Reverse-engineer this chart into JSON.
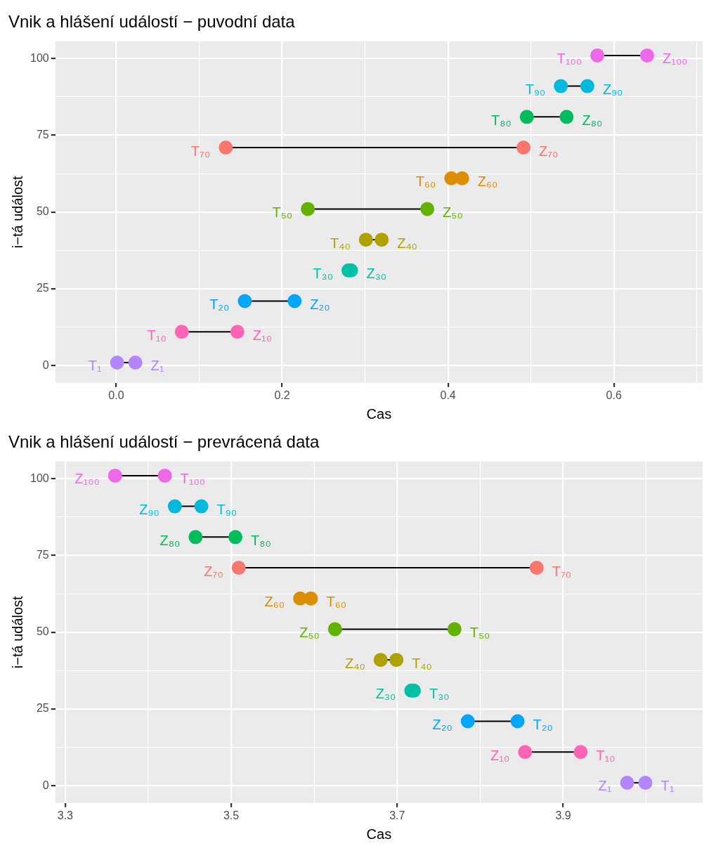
{
  "chart_data": [
    {
      "type": "line",
      "title": "Vnik a hlášení událostí − puvodní data",
      "xlabel": "Cas",
      "ylabel": "i−tá událost",
      "legend": false,
      "grid": true,
      "marker": "circle",
      "line_style": "solid",
      "xlim": [
        -0.0735,
        0.707
      ],
      "ylim": [
        -5.6,
        105.6
      ],
      "xticks": [
        {
          "value": 0,
          "label": "0.0"
        },
        {
          "value": 0.1,
          "label": null
        },
        {
          "value": 0.2,
          "label": "0.2"
        },
        {
          "value": 0.3,
          "label": null
        },
        {
          "value": 0.4,
          "label": "0.4"
        },
        {
          "value": 0.5,
          "label": null
        },
        {
          "value": 0.6,
          "label": "0.6"
        },
        {
          "value": 0.7,
          "label": null
        }
      ],
      "yticks": [
        0,
        {
          "value": 12.5,
          "label": null
        },
        25,
        {
          "value": 37.5,
          "label": null
        },
        50,
        {
          "value": 62.5,
          "label": null
        },
        75,
        {
          "value": 87.5,
          "label": null
        },
        100
      ],
      "series": [
        {
          "color": "#b385ff",
          "x": [
            0.001,
            0.023
          ],
          "values": [
            1,
            1
          ]
        },
        {
          "color": "#ff63b6",
          "x": [
            0.079,
            0.146
          ],
          "values": [
            11,
            11
          ]
        },
        {
          "color": "#00a6ff",
          "x": [
            0.155,
            0.215
          ],
          "values": [
            21,
            21
          ]
        },
        {
          "type": "scatter",
          "color": "#00c1a7",
          "x": [
            0.28,
            0.283
          ],
          "values": [
            31,
            31
          ]
        },
        {
          "color": "#aea200",
          "x": [
            0.301,
            0.32
          ],
          "values": [
            41,
            41
          ]
        },
        {
          "color": "#64b200",
          "x": [
            0.231,
            0.375
          ],
          "values": [
            51,
            51
          ]
        },
        {
          "type": "scatter",
          "color": "#db8e00",
          "x": [
            0.404,
            0.417
          ],
          "values": [
            61,
            61
          ]
        },
        {
          "color": "#f8766d",
          "x": [
            0.132,
            0.491
          ],
          "values": [
            71,
            71
          ]
        },
        {
          "color": "#00bd5c",
          "x": [
            0.495,
            0.543
          ],
          "values": [
            81,
            81
          ]
        },
        {
          "color": "#00bade",
          "x": [
            0.536,
            0.568
          ],
          "values": [
            91,
            91
          ]
        },
        {
          "color": "#ef67eb",
          "x": [
            0.58,
            0.64
          ],
          "values": [
            101,
            101
          ]
        }
      ],
      "annotations": [
        {
          "text": "T₁",
          "x": 0.001,
          "y": 1
        },
        {
          "text": "Z₁",
          "x": 0.023,
          "y": 1
        },
        {
          "text": "T₁₀",
          "x": 0.079,
          "y": 11
        },
        {
          "text": "Z₁₀",
          "x": 0.146,
          "y": 11
        },
        {
          "text": "T₂₀",
          "x": 0.155,
          "y": 21
        },
        {
          "text": "Z₂₀",
          "x": 0.215,
          "y": 21
        },
        {
          "text": "T₃₀",
          "x": 0.28,
          "y": 31
        },
        {
          "text": "Z₃₀",
          "x": 0.283,
          "y": 31
        },
        {
          "text": "T₄₀",
          "x": 0.301,
          "y": 41
        },
        {
          "text": "Z₄₀",
          "x": 0.32,
          "y": 41
        },
        {
          "text": "T₅₀",
          "x": 0.231,
          "y": 51
        },
        {
          "text": "Z₅₀",
          "x": 0.375,
          "y": 51
        },
        {
          "text": "T₆₀",
          "x": 0.404,
          "y": 61
        },
        {
          "text": "Z₆₀",
          "x": 0.417,
          "y": 61
        },
        {
          "text": "T₇₀",
          "x": 0.132,
          "y": 71
        },
        {
          "text": "Z₇₀",
          "x": 0.491,
          "y": 71
        },
        {
          "text": "T₈₀",
          "x": 0.495,
          "y": 81
        },
        {
          "text": "Z₈₀",
          "x": 0.543,
          "y": 81
        },
        {
          "text": "T₉₀",
          "x": 0.536,
          "y": 91
        },
        {
          "text": "Z₉₀",
          "x": 0.568,
          "y": 91
        },
        {
          "text": "T₁₀₀",
          "x": 0.58,
          "y": 101
        },
        {
          "text": "Z₁₀₀",
          "x": 0.64,
          "y": 101
        }
      ]
    },
    {
      "type": "line",
      "title": "Vnik a hlášení událostí − prevrácená data",
      "xlabel": "Cas",
      "ylabel": "i−tá událost",
      "legend": false,
      "grid": true,
      "marker": "circle",
      "line_style": "solid",
      "xlim": [
        3.288,
        4.068
      ],
      "ylim": [
        -5.6,
        105.6
      ],
      "xticks": [
        3.3,
        {
          "value": 3.4,
          "label": null
        },
        3.5,
        {
          "value": 3.6,
          "label": null
        },
        3.7,
        {
          "value": 3.8,
          "label": null
        },
        3.9,
        {
          "value": 4.0,
          "label": null
        }
      ],
      "yticks": [
        0,
        {
          "value": 12.5,
          "label": null
        },
        25,
        {
          "value": 37.5,
          "label": null
        },
        50,
        {
          "value": 62.5,
          "label": null
        },
        75,
        {
          "value": 87.5,
          "label": null
        },
        100
      ],
      "series": [
        {
          "color": "#b385ff",
          "x": [
            3.999,
            3.977
          ],
          "values": [
            1,
            1
          ]
        },
        {
          "color": "#ff63b6",
          "x": [
            3.921,
            3.854
          ],
          "values": [
            11,
            11
          ]
        },
        {
          "color": "#00a6ff",
          "x": [
            3.845,
            3.785
          ],
          "values": [
            21,
            21
          ]
        },
        {
          "type": "scatter",
          "color": "#00c1a7",
          "x": [
            3.72,
            3.717
          ],
          "values": [
            31,
            31
          ]
        },
        {
          "color": "#aea200",
          "x": [
            3.699,
            3.68
          ],
          "values": [
            41,
            41
          ]
        },
        {
          "color": "#64b200",
          "x": [
            3.769,
            3.625
          ],
          "values": [
            51,
            51
          ]
        },
        {
          "type": "scatter",
          "color": "#db8e00",
          "x": [
            3.596,
            3.583
          ],
          "values": [
            61,
            61
          ]
        },
        {
          "color": "#f8766d",
          "x": [
            3.868,
            3.509
          ],
          "values": [
            71,
            71
          ]
        },
        {
          "color": "#00bd5c",
          "x": [
            3.505,
            3.457
          ],
          "values": [
            81,
            81
          ]
        },
        {
          "color": "#00bade",
          "x": [
            3.464,
            3.432
          ],
          "values": [
            91,
            91
          ]
        },
        {
          "color": "#ef67eb",
          "x": [
            3.42,
            3.36
          ],
          "values": [
            101,
            101
          ]
        }
      ],
      "annotations": [
        {
          "text": "T₁",
          "x": 3.999,
          "y": 1
        },
        {
          "text": "Z₁",
          "x": 3.977,
          "y": 1
        },
        {
          "text": "T₁₀",
          "x": 3.921,
          "y": 11
        },
        {
          "text": "Z₁₀",
          "x": 3.854,
          "y": 11
        },
        {
          "text": "T₂₀",
          "x": 3.845,
          "y": 21
        },
        {
          "text": "Z₂₀",
          "x": 3.785,
          "y": 21
        },
        {
          "text": "T₃₀",
          "x": 3.72,
          "y": 31
        },
        {
          "text": "Z₃₀",
          "x": 3.717,
          "y": 31
        },
        {
          "text": "T₄₀",
          "x": 3.699,
          "y": 41
        },
        {
          "text": "Z₄₀",
          "x": 3.68,
          "y": 41
        },
        {
          "text": "T₅₀",
          "x": 3.769,
          "y": 51
        },
        {
          "text": "Z₅₀",
          "x": 3.625,
          "y": 51
        },
        {
          "text": "T₆₀",
          "x": 3.596,
          "y": 61
        },
        {
          "text": "Z₆₀",
          "x": 3.583,
          "y": 61
        },
        {
          "text": "T₇₀",
          "x": 3.868,
          "y": 71
        },
        {
          "text": "Z₇₀",
          "x": 3.509,
          "y": 71
        },
        {
          "text": "T₈₀",
          "x": 3.505,
          "y": 81
        },
        {
          "text": "Z₈₀",
          "x": 3.457,
          "y": 81
        },
        {
          "text": "T₉₀",
          "x": 3.464,
          "y": 91
        },
        {
          "text": "Z₉₀",
          "x": 3.432,
          "y": 91
        },
        {
          "text": "T₁₀₀",
          "x": 3.42,
          "y": 101
        },
        {
          "text": "Z₁₀₀",
          "x": 3.36,
          "y": 101
        }
      ]
    }
  ]
}
